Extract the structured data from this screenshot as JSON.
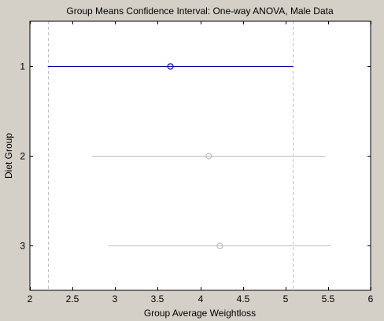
{
  "chart_data": {
    "type": "scatter",
    "title": "Group Means Confidence Interval: One-way ANOVA, Male Data",
    "xlabel": "Group Average Weightloss",
    "ylabel": "Diet Group",
    "xlim": [
      2,
      6
    ],
    "ylim": [
      0.5,
      3.5
    ],
    "x_ticks": [
      "2",
      "2.5",
      "3",
      "3.5",
      "4",
      "4.5",
      "5",
      "5.5",
      "6"
    ],
    "y_categories": [
      "1",
      "2",
      "3"
    ],
    "grid": false,
    "reference_lines": [
      2.21,
      5.09
    ],
    "series": [
      {
        "group": "1",
        "mean": 3.65,
        "lower": 2.21,
        "upper": 5.09,
        "color": "#0000a0",
        "highlighted": true
      },
      {
        "group": "2",
        "mean": 4.1,
        "lower": 2.73,
        "upper": 5.47,
        "color": "#bdbdbd",
        "highlighted": false
      },
      {
        "group": "3",
        "mean": 4.23,
        "lower": 2.92,
        "upper": 5.53,
        "color": "#bdbdbd",
        "highlighted": false
      }
    ]
  },
  "colors": {
    "figure_background": "#d4d0c8",
    "axes_background": "#ffffff",
    "highlight": "#0000a0",
    "muted": "#bdbdbd"
  }
}
